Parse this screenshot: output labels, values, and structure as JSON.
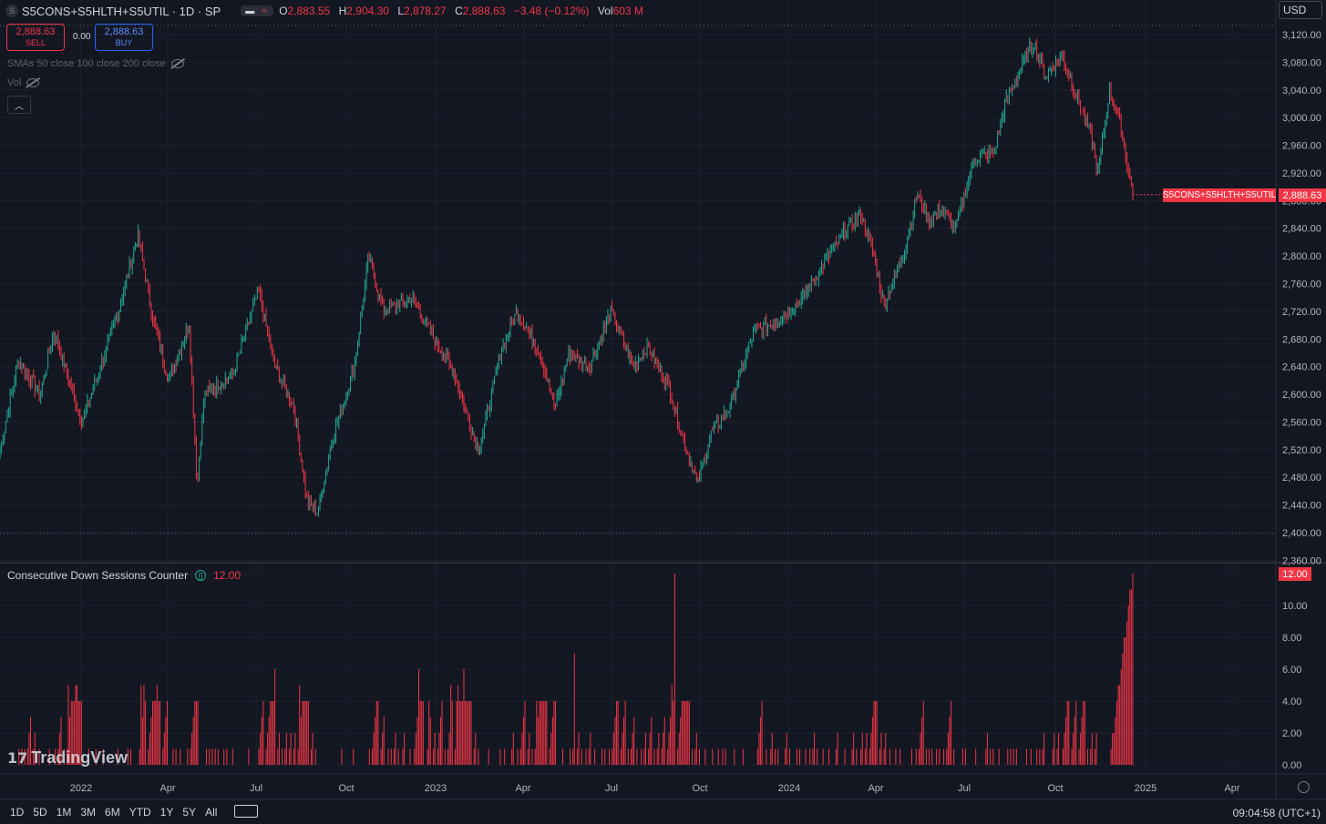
{
  "header": {
    "symbol": "S5CONS+S5HLTH+S5UTIL · 1D · SP",
    "symbol_badge": "S",
    "ohlc": {
      "o_label": "O",
      "o": "2,883.55",
      "h_label": "H",
      "h": "2,904.30",
      "l_label": "L",
      "l": "2,878.27",
      "c_label": "C",
      "c": "2,888.63",
      "chg": "−3.48 (−0.12%)",
      "vol_label": "Vol",
      "vol": "603 M"
    }
  },
  "trade": {
    "sell_price": "2,888.63",
    "sell_label": "SELL",
    "buy_price": "2,888.63",
    "buy_label": "BUY",
    "spread": "0.00"
  },
  "indicators": {
    "sma": "SMAs 50 close 100 close 200 close",
    "vol": "Vol"
  },
  "currency": "USD",
  "last_price_tag": "2,888.63",
  "symbol_tag": "S5CONS+S5HLTH+S5UTIL",
  "counter": {
    "title": "Consecutive Down Sessions Counter",
    "value": "12.00",
    "tag": "12.00"
  },
  "brand": "TradingView",
  "ranges": [
    "1D",
    "5D",
    "1M",
    "3M",
    "6M",
    "YTD",
    "1Y",
    "5Y",
    "All"
  ],
  "clock": "09:04:58 (UTC+1)",
  "colors": {
    "up": "#22ab94",
    "down": "#f23645",
    "bg": "#131722",
    "grid": "#1e222d",
    "text": "#b2b5be"
  },
  "chart_data": [
    {
      "type": "candlestick",
      "x_ticks": [
        "2022",
        "Apr",
        "Jul",
        "Oct",
        "2023",
        "Apr",
        "Jul",
        "Oct",
        "2024",
        "Apr",
        "Jul",
        "Oct",
        "2025",
        "Apr"
      ],
      "y_ticks": [
        "3,120.00",
        "3,080.00",
        "3,040.00",
        "3,000.00",
        "2,960.00",
        "2,920.00",
        "2,880.00",
        "2,840.00",
        "2,800.00",
        "2,760.00",
        "2,720.00",
        "2,680.00",
        "2,640.00",
        "2,600.00",
        "2,560.00",
        "2,520.00",
        "2,480.00",
        "2,440.00",
        "2,400.00",
        "2,360.00"
      ],
      "ylim": [
        2360,
        3120
      ],
      "anchors": [
        [
          "2021-12-06",
          2520
        ],
        [
          "2021-12-24",
          2650
        ],
        [
          "2022-01-14",
          2600
        ],
        [
          "2022-01-28",
          2690
        ],
        [
          "2022-02-24",
          2560
        ],
        [
          "2022-03-10",
          2620
        ],
        [
          "2022-04-01",
          2720
        ],
        [
          "2022-04-20",
          2830
        ],
        [
          "2022-05-06",
          2700
        ],
        [
          "2022-05-20",
          2620
        ],
        [
          "2022-06-09",
          2700
        ],
        [
          "2022-06-17",
          2470
        ],
        [
          "2022-06-24",
          2600
        ],
        [
          "2022-07-22",
          2630
        ],
        [
          "2022-08-16",
          2750
        ],
        [
          "2022-09-01",
          2640
        ],
        [
          "2022-09-20",
          2580
        ],
        [
          "2022-10-03",
          2440
        ],
        [
          "2022-10-13",
          2430
        ],
        [
          "2022-10-28",
          2540
        ],
        [
          "2022-11-18",
          2640
        ],
        [
          "2022-12-02",
          2800
        ],
        [
          "2022-12-16",
          2720
        ],
        [
          "2023-01-13",
          2740
        ],
        [
          "2023-01-31",
          2690
        ],
        [
          "2023-02-24",
          2630
        ],
        [
          "2023-03-10",
          2560
        ],
        [
          "2023-03-20",
          2520
        ],
        [
          "2023-04-10",
          2660
        ],
        [
          "2023-04-26",
          2720
        ],
        [
          "2023-05-19",
          2660
        ],
        [
          "2023-06-02",
          2580
        ],
        [
          "2023-06-16",
          2660
        ],
        [
          "2023-07-06",
          2640
        ],
        [
          "2023-07-27",
          2720
        ],
        [
          "2023-08-18",
          2640
        ],
        [
          "2023-09-01",
          2670
        ],
        [
          "2023-09-22",
          2610
        ],
        [
          "2023-10-05",
          2540
        ],
        [
          "2023-10-20",
          2470
        ],
        [
          "2023-11-01",
          2540
        ],
        [
          "2023-11-20",
          2580
        ],
        [
          "2023-12-14",
          2690
        ],
        [
          "2024-01-10",
          2710
        ],
        [
          "2024-01-31",
          2740
        ],
        [
          "2024-02-21",
          2790
        ],
        [
          "2024-03-14",
          2840
        ],
        [
          "2024-03-28",
          2860
        ],
        [
          "2024-04-10",
          2800
        ],
        [
          "2024-04-19",
          2730
        ],
        [
          "2024-05-08",
          2800
        ],
        [
          "2024-05-22",
          2890
        ],
        [
          "2024-06-03",
          2850
        ],
        [
          "2024-06-14",
          2870
        ],
        [
          "2024-06-28",
          2840
        ],
        [
          "2024-07-17",
          2940
        ],
        [
          "2024-08-05",
          2950
        ],
        [
          "2024-08-16",
          3020
        ],
        [
          "2024-09-03",
          3080
        ],
        [
          "2024-09-13",
          3110
        ],
        [
          "2024-09-24",
          3060
        ],
        [
          "2024-10-11",
          3090
        ],
        [
          "2024-10-25",
          3030
        ],
        [
          "2024-11-07",
          2980
        ],
        [
          "2024-11-15",
          2920
        ],
        [
          "2024-11-26",
          3040
        ],
        [
          "2024-12-04",
          3010
        ],
        [
          "2024-12-19",
          2888.63
        ]
      ],
      "last": {
        "date": "2024-12-19",
        "open": 2883.55,
        "high": 2904.3,
        "low": 2878.27,
        "close": 2888.63
      }
    },
    {
      "type": "bar",
      "title": "Consecutive Down Sessions Counter",
      "y_ticks": [
        "12.00",
        "10.00",
        "8.00",
        "6.00",
        "4.00",
        "2.00",
        "0.00"
      ],
      "ylim": [
        0,
        12
      ],
      "last_value": 12,
      "notable_values": [
        5,
        5,
        5,
        4,
        5,
        5,
        4,
        5,
        6,
        5,
        6,
        4,
        5,
        4,
        5,
        6,
        4,
        7,
        5,
        12
      ]
    }
  ]
}
